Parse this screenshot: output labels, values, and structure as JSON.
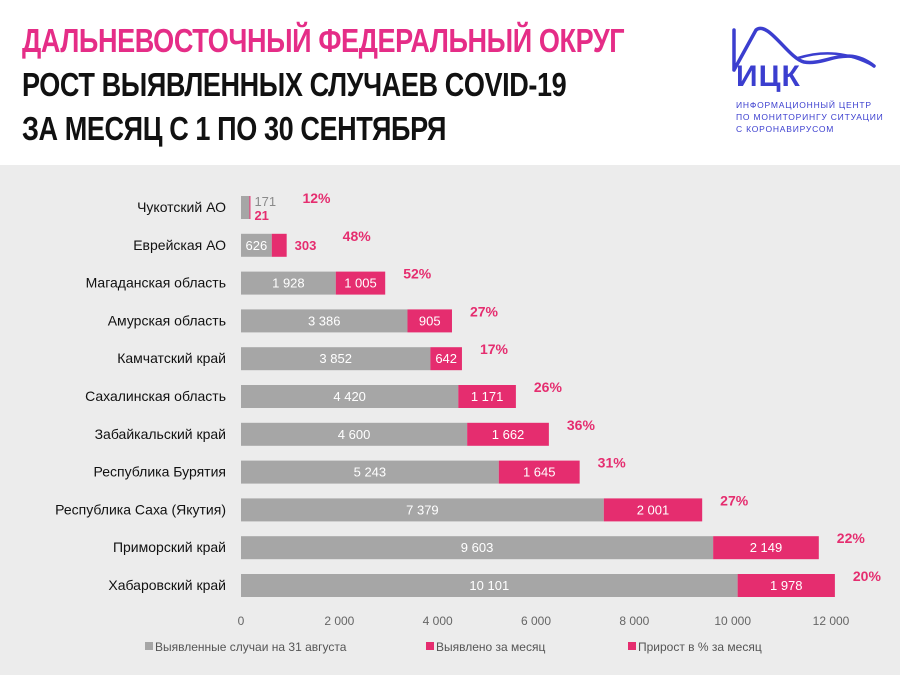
{
  "header": {
    "title_line1": "ДАЛЬНЕВОСТОЧНЫЙ ФЕДЕРАЛЬНЫЙ ОКРУГ",
    "title_line2": "РОСТ ВЫЯВЛЕННЫХ СЛУЧАЕВ COVID-19",
    "title_line3": "ЗА МЕСЯЦ С 1 ПО 30 СЕНТЯБРЯ"
  },
  "logo": {
    "name": "ИЦК",
    "sub1": "ИНФОРМАЦИОННЫЙ ЦЕНТР",
    "sub2": "ПО МОНИТОРИНГУ СИТУАЦИИ",
    "sub3": "С КОРОНАВИРУСОМ",
    "color": "#3b3ecf"
  },
  "chart_data": {
    "type": "bar",
    "orientation": "horizontal",
    "stacked": true,
    "categories": [
      "Чукотский АО",
      "Еврейская АО",
      "Магаданская область",
      "Амурская область",
      "Камчатский край",
      "Сахалинская область",
      "Забайкальский край",
      "Республика Бурятия",
      "Республика Саха (Якутия)",
      "Приморский край",
      "Хабаровский край"
    ],
    "series": [
      {
        "name": "Выявленные случаи на 31 августа",
        "color": "#a6a6a6",
        "values": [
          171,
          626,
          1928,
          3386,
          3852,
          4420,
          4600,
          5243,
          7379,
          9603,
          10101
        ],
        "labels": [
          "171",
          "626",
          "1 928",
          "3 386",
          "3 852",
          "4 420",
          "4 600",
          "5 243",
          "7 379",
          "9 603",
          "10 101"
        ]
      },
      {
        "name": "Выявлено за месяц",
        "color": "#e52d6f",
        "values": [
          21,
          303,
          1005,
          905,
          642,
          1171,
          1662,
          1645,
          2001,
          2149,
          1978
        ],
        "labels": [
          "21",
          "303",
          "1 005",
          "905",
          "642",
          "1 171",
          "1 662",
          "1 645",
          "2 001",
          "2 149",
          "1 978"
        ]
      }
    ],
    "growth": {
      "name": "Прирост в % за месяц",
      "color": "#e52d6f",
      "labels": [
        "12%",
        "48%",
        "52%",
        "27%",
        "17%",
        "26%",
        "36%",
        "31%",
        "27%",
        "22%",
        "20%"
      ]
    },
    "xlim": [
      0,
      12000
    ],
    "xticks": [
      0,
      2000,
      4000,
      6000,
      8000,
      10000,
      12000
    ],
    "xtick_labels": [
      "0",
      "2 000",
      "4 000",
      "6 000",
      "8 000",
      "10 000",
      "12 000"
    ],
    "legend_position": "bottom",
    "grid": false
  }
}
